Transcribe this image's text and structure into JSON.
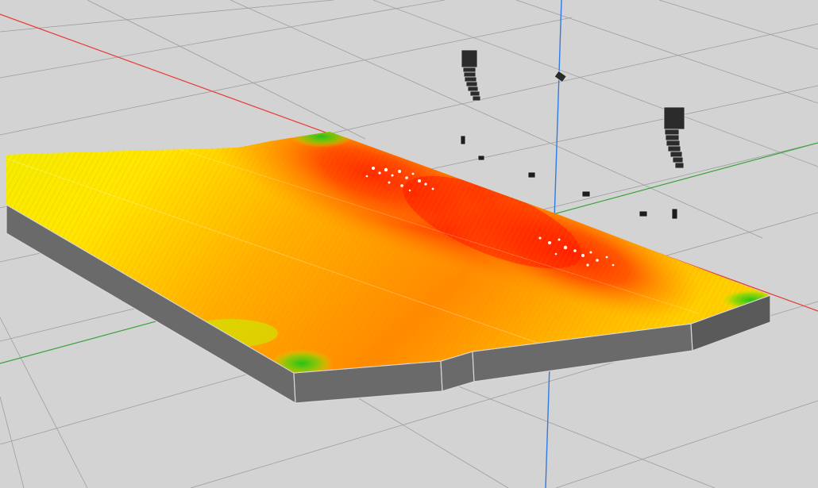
{
  "viewport": {
    "background_color": "#d3d3d3",
    "grid_color": "#9e9e9e",
    "axes": {
      "x_axis_color": "#e53935",
      "y_axis_color": "#3ba33b",
      "z_axis_color": "#2f7be5"
    },
    "floor": {
      "side_color": "#6a6a6a",
      "heatmap_colors": [
        "#35c81a",
        "#c8f000",
        "#ffef00",
        "#ffb000",
        "#ff6a00",
        "#ec1f00",
        "#ffffff"
      ]
    },
    "objects": [
      {
        "kind": "line-array-speaker",
        "name": "left-line-array"
      },
      {
        "kind": "line-array-speaker",
        "name": "right-line-array"
      },
      {
        "kind": "point-source-speaker",
        "name": "center-point-speaker"
      },
      {
        "kind": "subwoofer",
        "name": "subwoofer-1"
      },
      {
        "kind": "subwoofer",
        "name": "subwoofer-2"
      },
      {
        "kind": "subwoofer",
        "name": "subwoofer-3"
      },
      {
        "kind": "subwoofer",
        "name": "subwoofer-4"
      },
      {
        "kind": "subwoofer",
        "name": "subwoofer-5"
      },
      {
        "kind": "subwoofer",
        "name": "subwoofer-6"
      },
      {
        "kind": "subwoofer",
        "name": "subwoofer-7"
      }
    ]
  }
}
